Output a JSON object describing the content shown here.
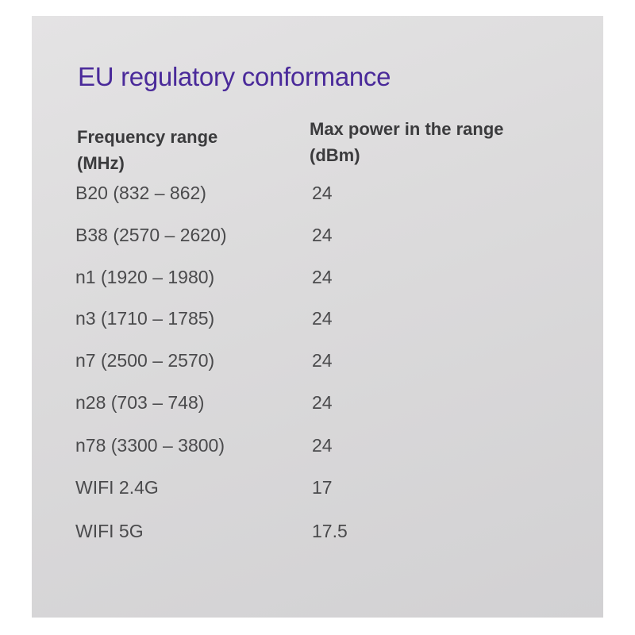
{
  "title": "EU regulatory conformance",
  "headers": {
    "frequency_line1": "Frequency range",
    "frequency_line2": "(MHz)",
    "power_line1": "Max power in the range",
    "power_line2": "(dBm)"
  },
  "rows": [
    {
      "range": "B20 (832 – 862)",
      "power": "24"
    },
    {
      "range": "B38 (2570 – 2620)",
      "power": "24"
    },
    {
      "range": "n1 (1920 – 1980)",
      "power": "24"
    },
    {
      "range": "n3 (1710 – 1785)",
      "power": "24"
    },
    {
      "range": "n7 (2500 – 2570)",
      "power": "24"
    },
    {
      "range": "n28 (703 – 748)",
      "power": "24"
    },
    {
      "range": "n78 (3300 – 3800)",
      "power": "24"
    },
    {
      "range": "WIFI 2.4G",
      "power": "17"
    },
    {
      "range": "WIFI 5G",
      "power": "17.5"
    }
  ]
}
